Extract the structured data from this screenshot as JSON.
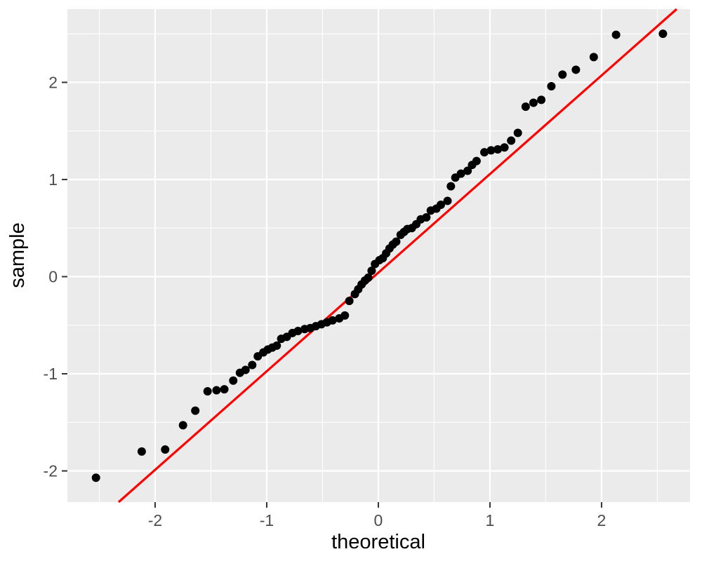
{
  "chart_data": {
    "type": "scatter",
    "title": "",
    "xlabel": "theoretical",
    "ylabel": "sample",
    "xlim": [
      -2.786,
      2.793
    ],
    "ylim": [
      -2.321,
      2.754
    ],
    "x_ticks": [
      -2,
      -1,
      0,
      1,
      2
    ],
    "y_ticks": [
      -2,
      -1,
      0,
      1,
      2
    ],
    "x_minor_ticks": [
      -2.5,
      -1.5,
      -0.5,
      0.5,
      1.5,
      2.5
    ],
    "y_minor_ticks": [
      -1.5,
      -0.5,
      0.5,
      1.5,
      2.5
    ],
    "grid": "on",
    "legend": "none",
    "series": [
      {
        "name": "sample quantiles",
        "type": "scatter",
        "color": "#000000",
        "points": [
          [
            -2.53,
            -2.07
          ],
          [
            -2.12,
            -1.8
          ],
          [
            -1.91,
            -1.78
          ],
          [
            -1.75,
            -1.53
          ],
          [
            -1.64,
            -1.38
          ],
          [
            -1.53,
            -1.18
          ],
          [
            -1.45,
            -1.17
          ],
          [
            -1.38,
            -1.16
          ],
          [
            -1.3,
            -1.07
          ],
          [
            -1.24,
            -0.99
          ],
          [
            -1.19,
            -0.96
          ],
          [
            -1.13,
            -0.91
          ],
          [
            -1.08,
            -0.82
          ],
          [
            -1.03,
            -0.78
          ],
          [
            -0.99,
            -0.75
          ],
          [
            -0.95,
            -0.73
          ],
          [
            -0.91,
            -0.71
          ],
          [
            -0.87,
            -0.64
          ],
          [
            -0.82,
            -0.62
          ],
          [
            -0.77,
            -0.58
          ],
          [
            -0.72,
            -0.56
          ],
          [
            -0.66,
            -0.54
          ],
          [
            -0.61,
            -0.53
          ],
          [
            -0.56,
            -0.51
          ],
          [
            -0.51,
            -0.49
          ],
          [
            -0.46,
            -0.47
          ],
          [
            -0.41,
            -0.45
          ],
          [
            -0.35,
            -0.43
          ],
          [
            -0.3,
            -0.4
          ],
          [
            -0.26,
            -0.25
          ],
          [
            -0.21,
            -0.18
          ],
          [
            -0.18,
            -0.13
          ],
          [
            -0.15,
            -0.08
          ],
          [
            -0.12,
            -0.04
          ],
          [
            -0.09,
            -0.01
          ],
          [
            -0.06,
            0.06
          ],
          [
            -0.03,
            0.13
          ],
          [
            0.01,
            0.17
          ],
          [
            0.04,
            0.19
          ],
          [
            0.07,
            0.24
          ],
          [
            0.1,
            0.29
          ],
          [
            0.13,
            0.33
          ],
          [
            0.16,
            0.36
          ],
          [
            0.2,
            0.43
          ],
          [
            0.23,
            0.46
          ],
          [
            0.26,
            0.49
          ],
          [
            0.3,
            0.5
          ],
          [
            0.34,
            0.54
          ],
          [
            0.38,
            0.59
          ],
          [
            0.43,
            0.61
          ],
          [
            0.47,
            0.68
          ],
          [
            0.52,
            0.7
          ],
          [
            0.56,
            0.74
          ],
          [
            0.62,
            0.78
          ],
          [
            0.65,
            0.93
          ],
          [
            0.69,
            1.02
          ],
          [
            0.74,
            1.06
          ],
          [
            0.8,
            1.09
          ],
          [
            0.84,
            1.15
          ],
          [
            0.88,
            1.19
          ],
          [
            0.95,
            1.28
          ],
          [
            1.01,
            1.3
          ],
          [
            1.07,
            1.31
          ],
          [
            1.13,
            1.33
          ],
          [
            1.19,
            1.4
          ],
          [
            1.25,
            1.48
          ],
          [
            1.32,
            1.75
          ],
          [
            1.39,
            1.79
          ],
          [
            1.46,
            1.82
          ],
          [
            1.55,
            1.96
          ],
          [
            1.65,
            2.08
          ],
          [
            1.77,
            2.13
          ],
          [
            1.93,
            2.26
          ],
          [
            2.13,
            2.49
          ],
          [
            2.55,
            2.5
          ]
        ]
      },
      {
        "name": "qq reference line",
        "type": "line",
        "color": "#FF0000",
        "x1": -2.327,
        "y1": -2.321,
        "x2": 2.673,
        "y2": 2.754
      }
    ],
    "style": {
      "panel_bg": "#EBEBEB",
      "grid_color": "#FFFFFF",
      "grid_major_width": 2.2,
      "grid_minor_width": 1.1,
      "tick_color": "#333333",
      "tick_label_color": "#4D4D4D",
      "axis_title_color": "#000000",
      "point_radius": 6,
      "line_width": 3.2
    }
  }
}
